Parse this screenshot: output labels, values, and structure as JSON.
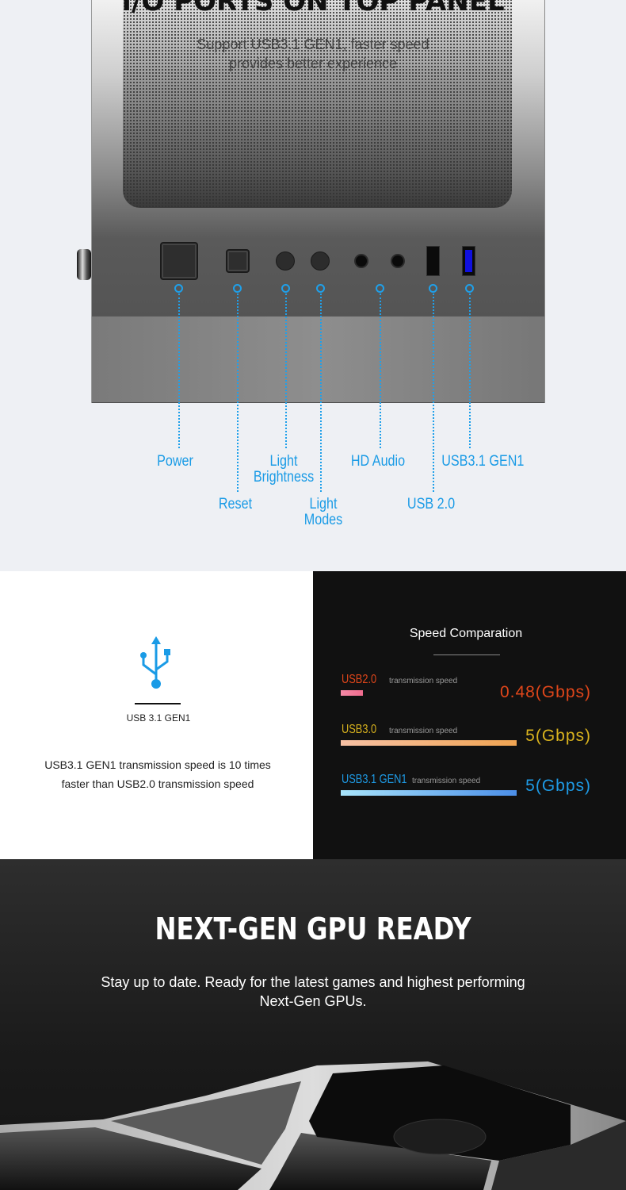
{
  "io_section": {
    "title": "I/O PORTS ON TOP PANEL",
    "subtitle_line1": "Support USB3.1 GEN1, faster speed",
    "subtitle_line2": "provides better experience",
    "labels": {
      "power": "Power",
      "reset": "Reset",
      "light_brightness_1": "Light",
      "light_brightness_2": "Brightness",
      "light_modes_1": "Light",
      "light_modes_2": "Modes",
      "hd_audio": "HD Audio",
      "usb20": "USB 2.0",
      "usb31": "USB3.1 GEN1"
    },
    "accent_color": "#1fa0ea"
  },
  "usb_section": {
    "icon": "usb-icon",
    "caption": "USB 3.1 GEN1",
    "desc_line1": "USB3.1 GEN1 transmission speed is 10 times",
    "desc_line2": "faster than USB2.0 transmission speed"
  },
  "speed": {
    "title": "Speed Comparation",
    "rows": [
      {
        "name": "USB2.0",
        "note": "transmission speed",
        "value": "0.48(Gbps)",
        "gbps": 0.48,
        "color": "#e0461a"
      },
      {
        "name": "USB3.0",
        "note": "transmission speed",
        "value": "5(Gbps)",
        "gbps": 5,
        "color": "#d9b31e"
      },
      {
        "name": "USB3.1 GEN1",
        "note": "transmission speed",
        "value": "5(Gbps)",
        "gbps": 5,
        "color": "#1e9be6"
      }
    ]
  },
  "gpu_section": {
    "title": "NEXT-GEN GPU READY",
    "desc_line1": "Stay up to date. Ready for the latest games and highest performing",
    "desc_line2": "Next-Gen GPUs."
  }
}
